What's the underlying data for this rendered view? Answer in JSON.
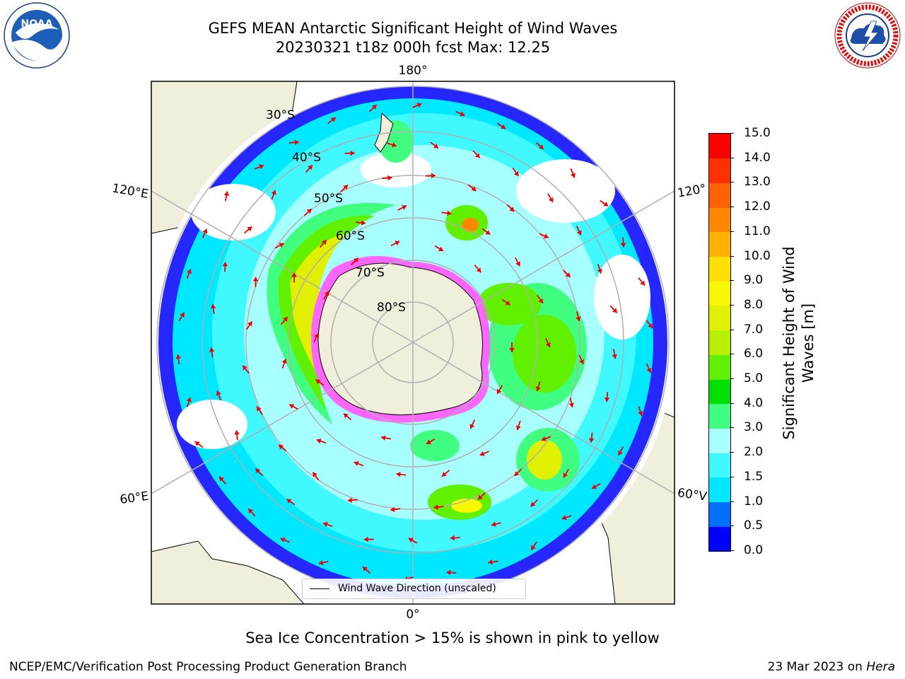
{
  "title": {
    "line1": "GEFS MEAN Antarctic Significant Height of Wind Waves",
    "line2": "20230321 t18z 000h fcst   Max: 12.25"
  },
  "logos": {
    "left": {
      "name": "noaa-logo",
      "text": "NOAA"
    },
    "right": {
      "name": "nws-logo",
      "text": "NATIONAL WEATHER SERVICE"
    }
  },
  "map": {
    "projection": "South Polar Stereographic",
    "longitude_labels": {
      "top": "180°",
      "bottom": "0°",
      "upper_left": "120°E",
      "upper_right": "120°",
      "lower_left": "60°E",
      "lower_right": "60°V"
    },
    "latitude_labels": [
      "30°S",
      "40°S",
      "50°S",
      "60°S",
      "70°S",
      "80°S"
    ],
    "legend_label": "Wind Wave Direction (unscaled)",
    "max_value": 12.25
  },
  "colorbar": {
    "label": "Significant Height of Wind Waves [m]",
    "ticks": [
      "0.0",
      "0.5",
      "1.0",
      "1.5",
      "2.0",
      "3.0",
      "4.0",
      "5.0",
      "6.0",
      "7.0",
      "8.0",
      "9.0",
      "10.0",
      "11.0",
      "12.0",
      "13.0",
      "14.0",
      "15.0"
    ],
    "colors": [
      "#0000ff",
      "#0070ff",
      "#00e8ff",
      "#40f8ff",
      "#a8ffff",
      "#40ff80",
      "#00e000",
      "#60f000",
      "#b8f000",
      "#e0f000",
      "#f8f800",
      "#ffe000",
      "#ffb000",
      "#ff8800",
      "#ff6000",
      "#ff3000",
      "#ff0000"
    ]
  },
  "footer": {
    "note": "Sea Ice Concentration > 15% is shown in pink to yellow",
    "credit": "NCEP/EMC/Verification Post Processing Product Generation Branch",
    "date": "23 Mar 2023 on ",
    "system": "Hera"
  }
}
